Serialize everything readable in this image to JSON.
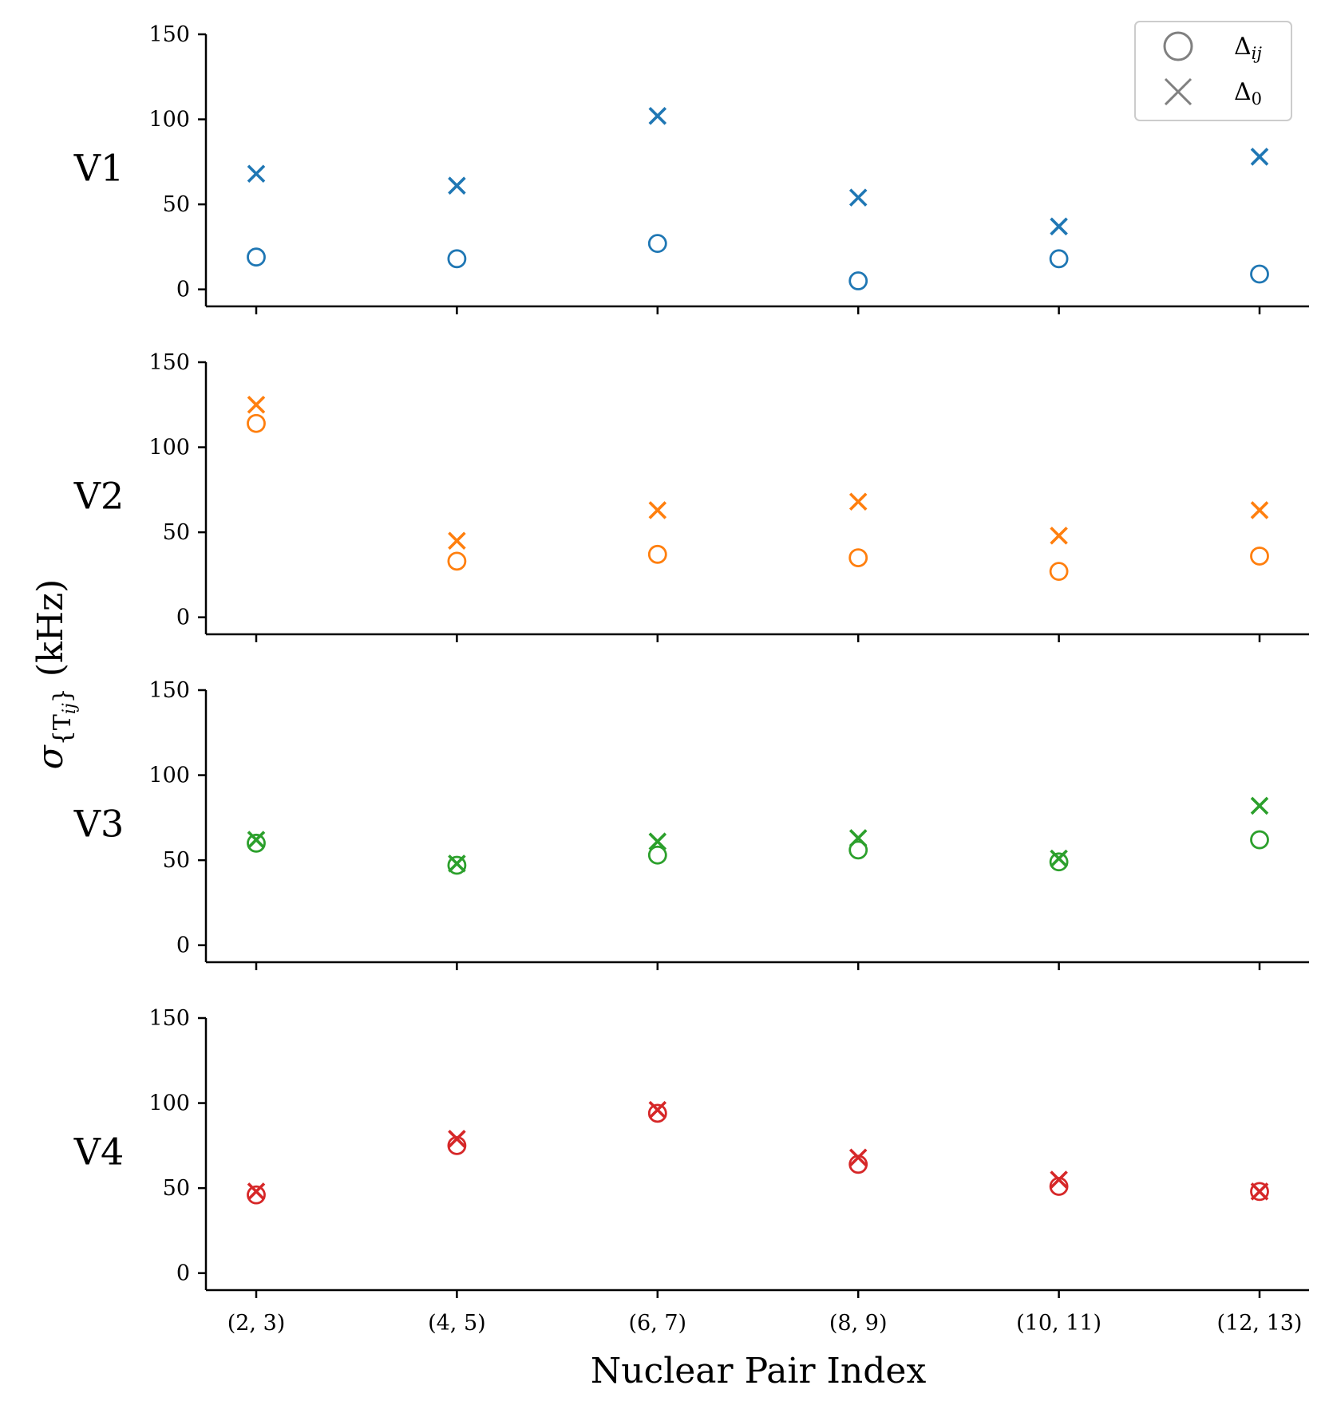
{
  "chart_data": {
    "type": "scatter",
    "xlabel": "Nuclear Pair Index",
    "ylabel_main": "σ",
    "ylabel_sub": "{T",
    "ylabel_subsub": "ij",
    "ylabel_close": "}",
    "ylabel_unit": "(kHz)",
    "ylim": [
      -10,
      150
    ],
    "yticks": [
      "0",
      "50",
      "100",
      "150"
    ],
    "ytick_values": [
      0,
      50,
      100,
      150
    ],
    "categories": [
      "(2, 3)",
      "(4, 5)",
      "(6, 7)",
      "(8, 9)",
      "(10, 11)",
      "(12, 13)"
    ],
    "legend": {
      "position": "top-right",
      "entries": [
        {
          "marker": "circle",
          "label": "Δ",
          "sub": "ij"
        },
        {
          "marker": "x",
          "label": "Δ",
          "sub": "0"
        }
      ]
    },
    "panels": [
      {
        "name": "V1",
        "color": "#1f77b4",
        "delta_ij": [
          19,
          18,
          27,
          5,
          18,
          9
        ],
        "delta_0": [
          68,
          61,
          102,
          54,
          37,
          78
        ]
      },
      {
        "name": "V2",
        "color": "#ff7f0e",
        "delta_ij": [
          114,
          33,
          37,
          35,
          27,
          36
        ],
        "delta_0": [
          125,
          45,
          63,
          68,
          48,
          63
        ]
      },
      {
        "name": "V3",
        "color": "#2ca02c",
        "delta_ij": [
          60,
          47,
          53,
          56,
          49,
          62
        ],
        "delta_0": [
          62,
          48,
          61,
          63,
          51,
          82
        ]
      },
      {
        "name": "V4",
        "color": "#d62728",
        "delta_ij": [
          46,
          75,
          94,
          64,
          51,
          48
        ],
        "delta_0": [
          48,
          79,
          96,
          68,
          55,
          48
        ]
      }
    ]
  }
}
